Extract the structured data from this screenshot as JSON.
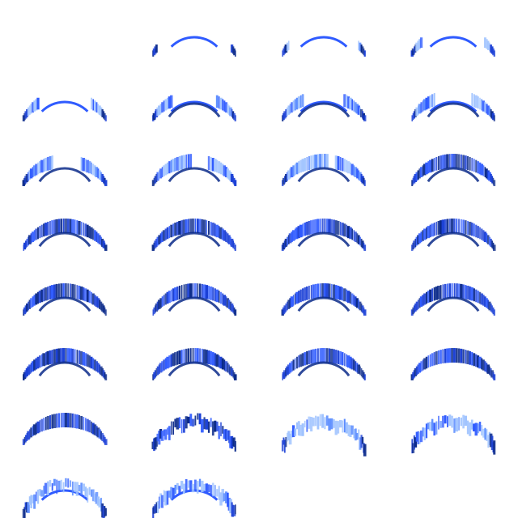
{
  "sprite_sheet": {
    "columns": 4,
    "frame_count": 30,
    "first_frame_blank": true,
    "colors": {
      "light": "#9ec2ff",
      "mid": "#5a8cff",
      "bright": "#2f5bff",
      "dark": "#1a3fd6",
      "navy": "#0b2a8a"
    },
    "frames": [
      {
        "fill": 0.0,
        "edge": 0.0,
        "trail": 0.0
      },
      {
        "fill": 0.0,
        "edge": 0.15,
        "trail": 0.0
      },
      {
        "fill": 0.05,
        "edge": 0.25,
        "trail": 0.0
      },
      {
        "fill": 0.08,
        "edge": 0.35,
        "trail": 0.0
      },
      {
        "fill": 0.12,
        "edge": 0.45,
        "trail": 0.0
      },
      {
        "fill": 0.18,
        "edge": 0.55,
        "trail": 0.0
      },
      {
        "fill": 0.22,
        "edge": 0.6,
        "trail": 0.0
      },
      {
        "fill": 0.28,
        "edge": 0.65,
        "trail": 0.0
      },
      {
        "fill": 0.4,
        "edge": 0.7,
        "trail": 0.0
      },
      {
        "fill": 0.48,
        "edge": 0.75,
        "trail": 0.0
      },
      {
        "fill": 0.55,
        "edge": 0.8,
        "trail": 0.0
      },
      {
        "fill": 0.62,
        "edge": 0.85,
        "trail": 0.0
      },
      {
        "fill": 0.68,
        "edge": 0.9,
        "trail": 0.05
      },
      {
        "fill": 0.74,
        "edge": 0.92,
        "trail": 0.08
      },
      {
        "fill": 0.8,
        "edge": 0.95,
        "trail": 0.1
      },
      {
        "fill": 0.85,
        "edge": 0.95,
        "trail": 0.12
      },
      {
        "fill": 0.9,
        "edge": 0.98,
        "trail": 0.15
      },
      {
        "fill": 0.92,
        "edge": 0.98,
        "trail": 0.18
      },
      {
        "fill": 0.95,
        "edge": 1.0,
        "trail": 0.22
      },
      {
        "fill": 0.95,
        "edge": 1.0,
        "trail": 0.28
      },
      {
        "fill": 0.9,
        "edge": 1.0,
        "trail": 0.35
      },
      {
        "fill": 0.85,
        "edge": 1.0,
        "trail": 0.4
      },
      {
        "fill": 0.8,
        "edge": 1.0,
        "trail": 0.45
      },
      {
        "fill": 0.75,
        "edge": 1.0,
        "trail": 0.5
      },
      {
        "fill": 0.7,
        "edge": 1.0,
        "trail": 0.55
      },
      {
        "fill": 0.62,
        "edge": 1.0,
        "trail": 0.62
      },
      {
        "fill": 0.5,
        "edge": 1.0,
        "trail": 0.7
      },
      {
        "fill": 0.35,
        "edge": 1.0,
        "trail": 0.78
      },
      {
        "fill": 0.25,
        "edge": 1.0,
        "trail": 0.85
      },
      {
        "fill": 0.15,
        "edge": 1.0,
        "trail": 0.9
      }
    ]
  }
}
